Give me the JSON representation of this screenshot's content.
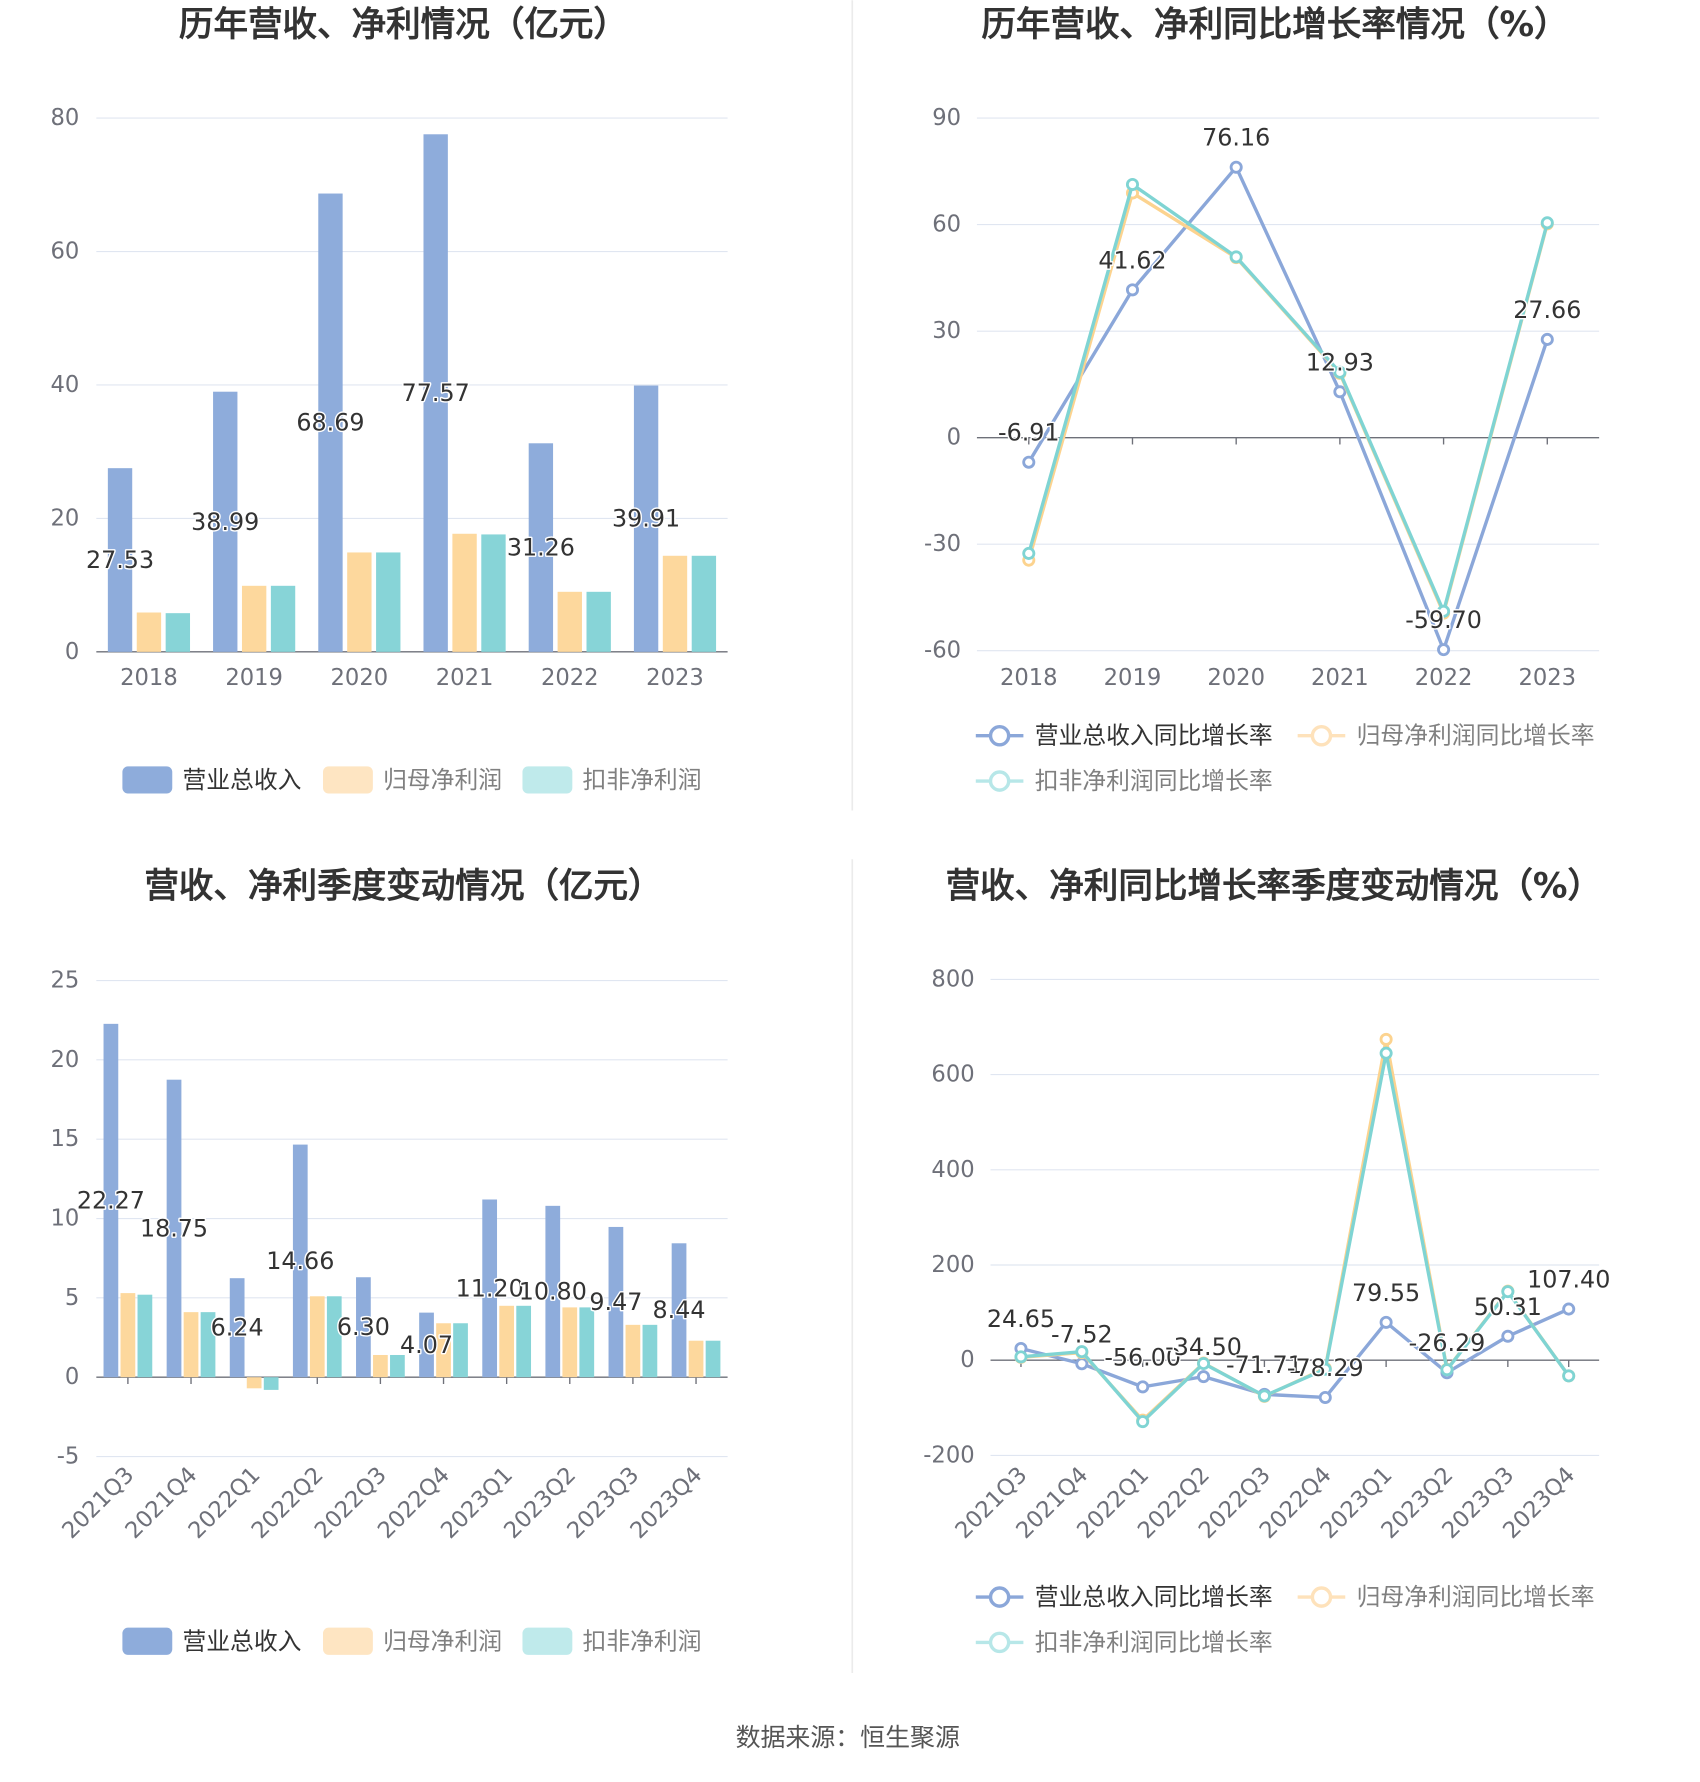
{
  "source_note": "数据来源：恒生聚源",
  "chart_data": [
    {
      "type": "bar",
      "title": "历年营收、净利情况（亿元）",
      "categories": [
        "2018",
        "2019",
        "2020",
        "2021",
        "2022",
        "2023"
      ],
      "ylim": [
        0,
        80
      ],
      "yticks": [
        0,
        20,
        40,
        60,
        80
      ],
      "grid": true,
      "legend": "bottom",
      "series": [
        {
          "name": "营业总收入",
          "values": [
            27.53,
            38.99,
            68.69,
            77.57,
            31.26,
            39.91
          ],
          "data_labels": [
            "27.53",
            "38.99",
            "68.69",
            "77.57",
            "31.26",
            "39.91"
          ],
          "color": "#8eacdb",
          "legend_color": "#8eacdb",
          "legend_text_color": "#333333"
        },
        {
          "name": "归母净利润",
          "values": [
            5.9,
            9.9,
            14.9,
            17.7,
            9.0,
            14.4
          ],
          "color": "#fdd89d",
          "legend_color": "#fee5c2",
          "legend_text_color": "#808080"
        },
        {
          "name": "扣非净利润",
          "values": [
            5.8,
            9.9,
            14.9,
            17.6,
            9.0,
            14.4
          ],
          "color": "#87d4d7",
          "legend_color": "#bfeaeb",
          "legend_text_color": "#808080"
        }
      ]
    },
    {
      "type": "line",
      "title": "历年营收、净利同比增长率情况（%）",
      "categories": [
        "2018",
        "2019",
        "2020",
        "2021",
        "2022",
        "2023"
      ],
      "ylim": [
        -60,
        90
      ],
      "yticks": [
        -60,
        -30,
        0,
        30,
        60,
        90
      ],
      "grid": true,
      "legend": "bottom",
      "series": [
        {
          "name": "营业总收入同比增长率",
          "values": [
            -6.91,
            41.62,
            76.16,
            12.93,
            -59.7,
            27.66
          ],
          "data_labels": [
            "-6.91",
            "41.62",
            "76.16",
            "12.93",
            "-59.70",
            "27.66"
          ],
          "color": "#8ba7d9",
          "legend_color": "#8ba7d9",
          "legend_text_color": "#333333"
        },
        {
          "name": "归母净利润同比增长率",
          "values": [
            -34.5,
            68.9,
            50.7,
            18.1,
            -49.4,
            60.2
          ],
          "color": "#fcd38f",
          "legend_color": "#fee2bb",
          "legend_text_color": "#808080"
        },
        {
          "name": "扣非净利润同比增长率",
          "values": [
            -32.6,
            71.3,
            50.9,
            18.4,
            -48.9,
            60.5
          ],
          "color": "#7fd4d3",
          "legend_color": "#b7e7e8",
          "legend_text_color": "#808080"
        }
      ]
    },
    {
      "type": "bar",
      "title": "营收、净利季度变动情况（亿元）",
      "categories": [
        "2021Q3",
        "2021Q4",
        "2022Q1",
        "2022Q2",
        "2022Q3",
        "2022Q4",
        "2023Q1",
        "2023Q2",
        "2023Q3",
        "2023Q4"
      ],
      "ylim": [
        -5,
        25
      ],
      "yticks": [
        -5,
        0,
        5,
        10,
        15,
        20,
        25
      ],
      "grid": true,
      "legend": "bottom",
      "series": [
        {
          "name": "营业总收入",
          "values": [
            22.27,
            18.75,
            6.24,
            14.66,
            6.3,
            4.07,
            11.2,
            10.8,
            9.47,
            8.44
          ],
          "data_labels": [
            "22.27",
            "18.75",
            "6.24",
            "14.66",
            "6.30",
            "4.07",
            "11.20",
            "10.80",
            "9.47",
            "8.44"
          ],
          "color": "#8eacdb",
          "legend_color": "#8eacdb",
          "legend_text_color": "#333333"
        },
        {
          "name": "归母净利润",
          "values": [
            5.3,
            4.1,
            -0.7,
            5.1,
            1.4,
            3.4,
            4.5,
            4.4,
            3.3,
            2.3
          ],
          "color": "#fdd89d",
          "legend_color": "#fee5c2",
          "legend_text_color": "#808080"
        },
        {
          "name": "扣非净利润",
          "values": [
            5.2,
            4.1,
            -0.8,
            5.1,
            1.4,
            3.4,
            4.5,
            4.4,
            3.3,
            2.3
          ],
          "color": "#87d4d7",
          "legend_color": "#bfeaeb",
          "legend_text_color": "#808080"
        }
      ]
    },
    {
      "type": "line",
      "title": "营收、净利同比增长率季度变动情况（%）",
      "categories": [
        "2021Q3",
        "2021Q4",
        "2022Q1",
        "2022Q2",
        "2022Q3",
        "2022Q4",
        "2023Q1",
        "2023Q2",
        "2023Q3",
        "2023Q4"
      ],
      "ylim": [
        -200,
        800
      ],
      "yticks": [
        -200,
        0,
        200,
        400,
        600,
        800
      ],
      "grid": true,
      "legend": "bottom",
      "series": [
        {
          "name": "营业总收入同比增长率",
          "values": [
            24.65,
            -7.52,
            -56.0,
            -34.5,
            -71.71,
            -78.29,
            79.55,
            -26.29,
            50.31,
            107.4
          ],
          "data_labels": [
            "24.65",
            "-7.52",
            "-56.00",
            "-34.50",
            "-71.71",
            "-78.29",
            "79.55",
            "-26.29",
            "50.31",
            "107.40"
          ],
          "color": "#8ba7d9",
          "legend_color": "#8ba7d9",
          "legend_text_color": "#333333"
        },
        {
          "name": "归母净利润同比增长率",
          "values": [
            6,
            16,
            -126,
            -6,
            -76,
            -17,
            674,
            -19,
            145,
            -33
          ],
          "color": "#fcd38f",
          "legend_color": "#fee2bb",
          "legend_text_color": "#808080"
        },
        {
          "name": "扣非净利润同比增长率",
          "values": [
            7,
            18,
            -129,
            -7,
            -75,
            -19,
            645,
            -20,
            144,
            -33
          ],
          "color": "#7fd4d3",
          "legend_color": "#b7e7e8",
          "legend_text_color": "#808080"
        }
      ]
    }
  ]
}
